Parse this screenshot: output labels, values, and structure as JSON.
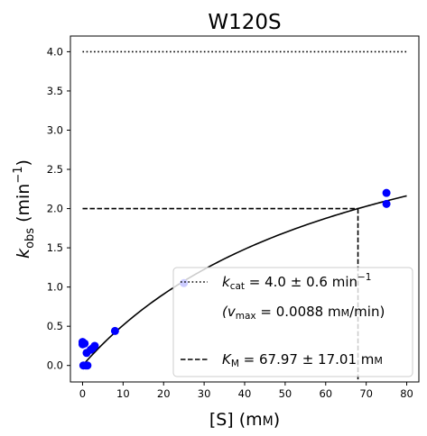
{
  "chart_data": {
    "type": "scatter",
    "title": "W120S",
    "xlabel": {
      "main": "[S] (m",
      "unit_sc": "M",
      "close": ")"
    },
    "ylabel": {
      "k": "k",
      "sub": "obs",
      "open": " (min",
      "sup": "−1",
      "close": ")"
    },
    "xlim": [
      -3,
      83
    ],
    "ylim": [
      -0.21,
      4.2
    ],
    "xticks": [
      0,
      10,
      20,
      30,
      40,
      50,
      60,
      70,
      80
    ],
    "xtick_labels": [
      "0",
      "10",
      "20",
      "30",
      "40",
      "50",
      "60",
      "70",
      "80"
    ],
    "yticks": [
      0.0,
      0.5,
      1.0,
      1.5,
      2.0,
      2.5,
      3.0,
      3.5,
      4.0
    ],
    "ytick_labels": [
      "0.0",
      "0.5",
      "1.0",
      "1.5",
      "2.0",
      "2.5",
      "3.0",
      "3.5",
      "4.0"
    ],
    "grid": false,
    "legend_position": "lower-right",
    "points": {
      "x": [
        0,
        0,
        0.2,
        0.5,
        0.8,
        1,
        1.2,
        2,
        2.5,
        3,
        8,
        25,
        75,
        75
      ],
      "y": [
        0.3,
        0.27,
        0.0,
        0.28,
        0.0,
        0.16,
        0.0,
        0.2,
        0.22,
        0.25,
        0.44,
        1.05,
        2.2,
        2.06
      ],
      "color": "#0000ff"
    },
    "fit_curve": {
      "model": "michaelis-menten",
      "kcat": 4.0,
      "KM": 67.97,
      "x_range": [
        0,
        80
      ],
      "color": "#000000"
    },
    "vmax_line": {
      "y": 4.0,
      "x_range": [
        0,
        80
      ],
      "style": "dotted"
    },
    "km_line": {
      "x": 67.97,
      "y": 2.0,
      "style": "dashed"
    },
    "legend": [
      {
        "style": "dotted",
        "pre": "k",
        "sub": "cat",
        "text": " = 4.0 ± 0.6 min",
        "sup": "−1"
      },
      {
        "style": "none",
        "pre": "(v",
        "sub": "max",
        "text": " = 0.0088 m",
        "unit_sc": "M",
        "post": "/min)"
      },
      {
        "style": "dashed",
        "pre": "K",
        "sub": "M",
        "text": " = 67.97 ± 17.01 m",
        "unit_sc": "M"
      }
    ]
  }
}
